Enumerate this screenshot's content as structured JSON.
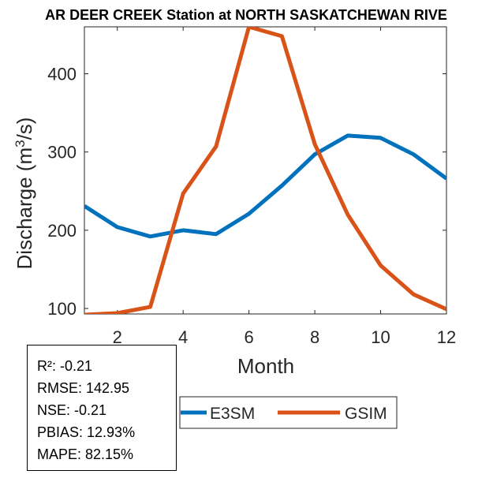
{
  "chart_data": {
    "type": "line",
    "title": "AR DEER CREEK  Station at  NORTH SASKATCHEWAN RIVE",
    "xlabel": "Month",
    "ylabel_main": "Discharge (m",
    "ylabel_sup": "3",
    "ylabel_end": "/s)",
    "xlim": [
      1,
      12
    ],
    "ylim": [
      93,
      460
    ],
    "xticks": [
      2,
      4,
      6,
      8,
      10,
      12
    ],
    "yticks": [
      100,
      200,
      300,
      400
    ],
    "x": [
      1,
      2,
      3,
      4,
      5,
      6,
      7,
      8,
      9,
      10,
      11,
      12
    ],
    "series": [
      {
        "name": "E3SM",
        "color": "#0072BD",
        "values": [
          231,
          204,
          192,
          200,
          195,
          221,
          257,
          297,
          321,
          318,
          297,
          266
        ]
      },
      {
        "name": "GSIM",
        "color": "#D95319",
        "values": [
          92,
          94,
          102,
          247,
          307,
          460,
          448,
          310,
          220,
          155,
          118,
          99
        ]
      }
    ],
    "legend_placement": "bottom-center",
    "grid": false
  },
  "stats": [
    "R²: -0.21",
    "RMSE: 142.95",
    "NSE: -0.21",
    "PBIAS: 12.93%",
    "MAPE: 82.15%"
  ]
}
